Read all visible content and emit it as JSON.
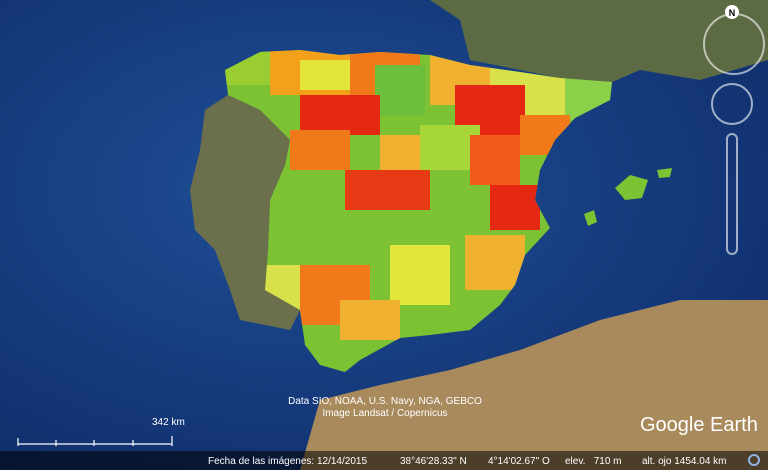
{
  "attribution": [
    "Data SIO, NOAA, U.S. Navy, NGA, GEBCO",
    "Image Landsat / Copernicus"
  ],
  "compass": "N",
  "scale": {
    "label": "342 km"
  },
  "logo": "Google Earth",
  "status_bar": {
    "imagery_date": "Fecha de las imágenes: 12/14/2015",
    "latitude": "38°46'28.33\" N",
    "longitude": "4°14'02.67\" O",
    "elevation": "elev.   710 m",
    "eye_altitude": "alt. ojo 1454.04 km"
  }
}
